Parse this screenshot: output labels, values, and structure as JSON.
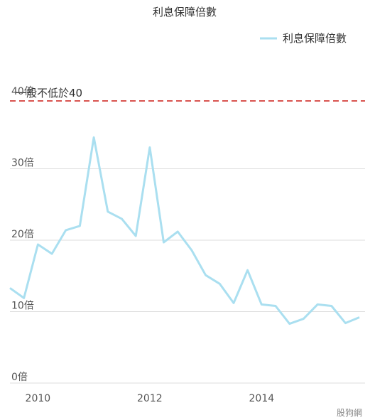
{
  "chart_data": {
    "type": "line",
    "title": "利息保障倍數",
    "xlabel": "",
    "ylabel": "",
    "ylim": [
      0,
      40
    ],
    "y_ticks": [
      {
        "value": 0,
        "label": "0倍"
      },
      {
        "value": 10,
        "label": "10倍"
      },
      {
        "value": 20,
        "label": "20倍"
      },
      {
        "value": 30,
        "label": "30倍"
      },
      {
        "value": 40,
        "label": "40倍"
      }
    ],
    "x_ticks": [
      {
        "value": 2010,
        "label": "2010"
      },
      {
        "value": 2012,
        "label": "2012"
      },
      {
        "value": 2014,
        "label": "2014"
      }
    ],
    "xlim": [
      2009.5,
      2015.85
    ],
    "grid": true,
    "legend_position": "top-right",
    "series": [
      {
        "name": "利息保障倍數",
        "color": "#aadff0",
        "x": [
          2009.5,
          2009.75,
          2010.0,
          2010.25,
          2010.5,
          2010.75,
          2011.0,
          2011.25,
          2011.5,
          2011.75,
          2012.0,
          2012.25,
          2012.5,
          2012.75,
          2013.0,
          2013.25,
          2013.5,
          2013.75,
          2014.0,
          2014.25,
          2014.5,
          2014.75,
          2015.0,
          2015.25,
          2015.5,
          2015.75
        ],
        "values": [
          13.3,
          11.9,
          19.4,
          18.1,
          21.4,
          22.0,
          34.4,
          24.0,
          23.0,
          20.6,
          33.0,
          19.7,
          21.2,
          18.6,
          15.1,
          13.9,
          11.2,
          15.8,
          11.0,
          10.8,
          8.3,
          9.0,
          11.0,
          10.8,
          8.4,
          9.2
        ]
      }
    ],
    "reference_line": {
      "value": 39.5,
      "label": "一般不低於40",
      "color": "#d9534f",
      "style": "dashed"
    }
  },
  "credit": "股狗網"
}
